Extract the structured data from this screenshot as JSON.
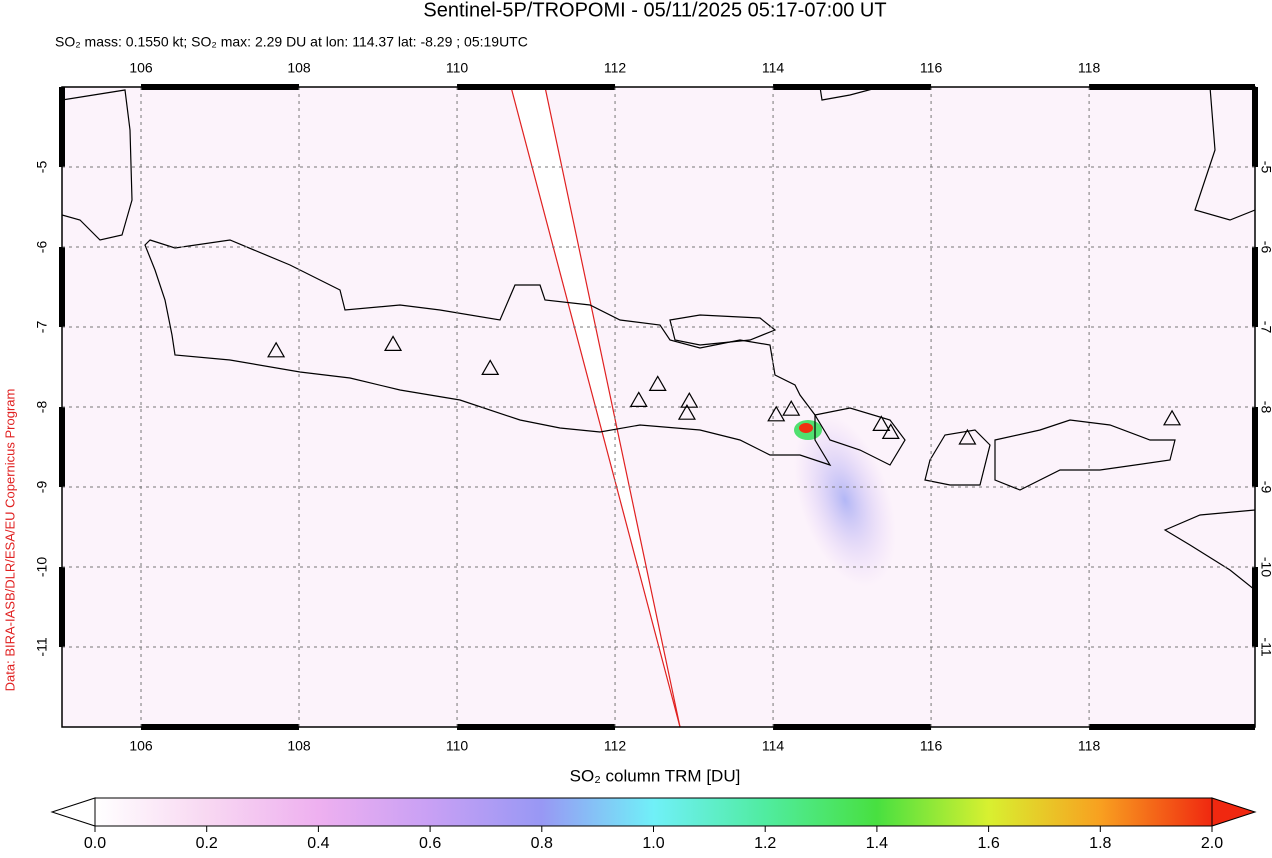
{
  "map": {
    "title": "Sentinel-5P/TROPOMI - 05/11/2025 05:17-07:00 UT",
    "subtitle": "SO₂ mass: 0.1550 kt; SO₂ max: 2.29 DU at lon: 114.37 lat: -8.29 ; 05:19UTC",
    "credit": "Data: BIRA-IASB/DLR/ESA/EU Copernicus Program",
    "xlim": [
      105.0,
      120.1
    ],
    "ylim": [
      -12.0,
      -4.0
    ],
    "xticks": [
      106,
      108,
      110,
      112,
      114,
      116,
      118
    ],
    "yticks": [
      -5,
      -6,
      -7,
      -8,
      -9,
      -10,
      -11
    ],
    "grid": true,
    "volcanoes": [
      {
        "lon": 107.71,
        "lat": -7.31
      },
      {
        "lon": 109.19,
        "lat": -7.23
      },
      {
        "lon": 110.42,
        "lat": -7.53
      },
      {
        "lon": 112.3,
        "lat": -7.93
      },
      {
        "lon": 112.54,
        "lat": -7.73
      },
      {
        "lon": 112.94,
        "lat": -7.94
      },
      {
        "lon": 112.91,
        "lat": -8.09
      },
      {
        "lon": 114.04,
        "lat": -8.11
      },
      {
        "lon": 114.23,
        "lat": -8.04
      },
      {
        "lon": 115.37,
        "lat": -8.23
      },
      {
        "lon": 115.49,
        "lat": -8.33
      },
      {
        "lon": 116.46,
        "lat": -8.4
      },
      {
        "lon": 119.05,
        "lat": -8.16
      }
    ],
    "colorbar": {
      "label": "SO₂ column TRM [DU]",
      "lim": [
        0,
        2
      ],
      "ticks": [
        {
          "value": 0,
          "label": "0.0"
        },
        {
          "value": 0.2,
          "label": "0.2"
        },
        {
          "value": 0.4,
          "label": "0.4"
        },
        {
          "value": 0.6,
          "label": "0.6"
        },
        {
          "value": 0.8,
          "label": "0.8"
        },
        {
          "value": 1,
          "label": "1.0"
        },
        {
          "value": 1.2,
          "label": "1.2"
        },
        {
          "value": 1.4,
          "label": "1.4"
        },
        {
          "value": 1.6,
          "label": "1.6"
        },
        {
          "value": 1.8,
          "label": "1.8"
        },
        {
          "value": 2,
          "label": "2.0"
        }
      ]
    }
  }
}
